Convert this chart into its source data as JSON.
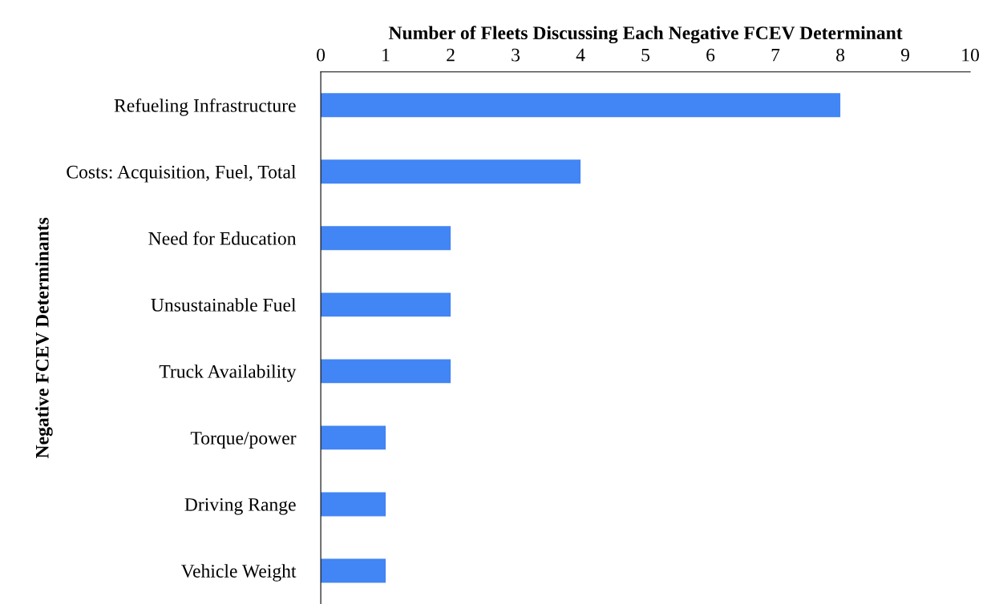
{
  "chart_data": {
    "type": "bar",
    "orientation": "horizontal",
    "xlabel": "Number of Fleets Discussing Each Negative FCEV Determinant",
    "ylabel": "Negative FCEV Determinants",
    "categories": [
      "Refueling Infrastructure",
      "Costs: Acquisition, Fuel, Total",
      "Need for Education",
      "Unsustainable Fuel",
      "Truck Availability",
      "Torque/power",
      "Driving Range",
      "Vehicle Weight"
    ],
    "values": [
      8,
      4,
      2,
      2,
      2,
      1,
      1,
      1
    ],
    "color": "#4285f4",
    "xlim": [
      0,
      10
    ],
    "xticks": [
      0,
      1,
      2,
      3,
      4,
      5,
      6,
      7,
      8,
      9,
      10
    ],
    "grid": false,
    "legend": false
  }
}
